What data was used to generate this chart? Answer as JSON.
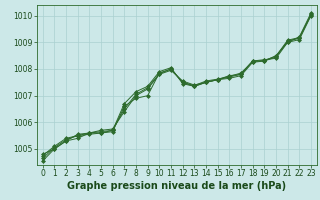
{
  "background_color": "#cce8e8",
  "plot_bg_color": "#cce8e8",
  "grid_color": "#aad0d0",
  "line_color": "#2d6b2d",
  "marker_color": "#2d6b2d",
  "xlabel": "Graphe pression niveau de la mer (hPa)",
  "xlabel_fontsize": 7,
  "xlabel_bold": true,
  "xlabel_color": "#1a4a1a",
  "tick_color": "#1a4a1a",
  "tick_fontsize": 5.5,
  "ylim": [
    1004.4,
    1010.4
  ],
  "yticks": [
    1005,
    1006,
    1007,
    1008,
    1009,
    1010
  ],
  "xlim": [
    -0.5,
    23.5
  ],
  "xticks": [
    0,
    1,
    2,
    3,
    4,
    5,
    6,
    7,
    8,
    9,
    10,
    11,
    12,
    13,
    14,
    15,
    16,
    17,
    18,
    19,
    20,
    21,
    22,
    23
  ],
  "series": [
    [
      1004.8,
      1005.0,
      1005.3,
      1005.4,
      1005.6,
      1005.6,
      1005.65,
      1006.6,
      1006.9,
      1007.0,
      1007.85,
      1008.0,
      1007.5,
      1007.35,
      1007.5,
      1007.6,
      1007.7,
      1007.8,
      1008.3,
      1008.3,
      1008.5,
      1009.0,
      1009.1,
      1010.0
    ],
    [
      1004.65,
      1005.05,
      1005.35,
      1005.5,
      1005.6,
      1005.7,
      1005.75,
      1006.4,
      1007.0,
      1007.25,
      1007.8,
      1007.95,
      1007.55,
      1007.4,
      1007.5,
      1007.6,
      1007.65,
      1007.75,
      1008.25,
      1008.3,
      1008.45,
      1009.05,
      1009.15,
      1010.05
    ],
    [
      1004.55,
      1005.0,
      1005.3,
      1005.55,
      1005.6,
      1005.65,
      1005.7,
      1006.7,
      1007.15,
      1007.35,
      1007.9,
      1008.05,
      1007.45,
      1007.35,
      1007.5,
      1007.6,
      1007.75,
      1007.8,
      1008.3,
      1008.35,
      1008.4,
      1009.0,
      1009.2,
      1010.1
    ],
    [
      1004.75,
      1005.1,
      1005.4,
      1005.5,
      1005.55,
      1005.6,
      1005.7,
      1006.5,
      1007.05,
      1007.3,
      1007.82,
      1008.0,
      1007.5,
      1007.38,
      1007.55,
      1007.62,
      1007.72,
      1007.85,
      1008.28,
      1008.32,
      1008.48,
      1009.08,
      1009.18,
      1010.02
    ]
  ]
}
